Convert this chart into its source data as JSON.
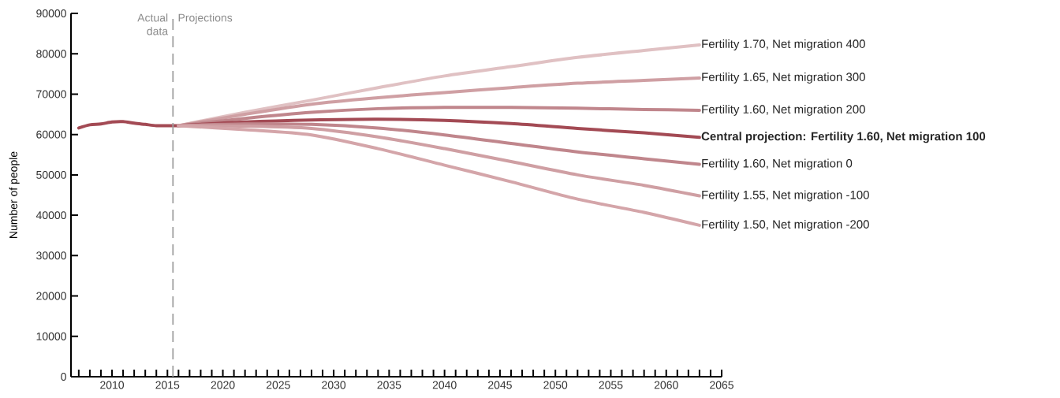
{
  "chart_data": {
    "type": "line",
    "ylabel": "Number of people",
    "xlim": [
      2006.3,
      2065
    ],
    "ylim": [
      0,
      90000
    ],
    "xticks": [
      {
        "value": 2007,
        "label": null
      },
      {
        "value": 2008,
        "label": null
      },
      {
        "value": 2009,
        "label": null
      },
      2010,
      {
        "value": 2011,
        "label": null
      },
      {
        "value": 2012,
        "label": null
      },
      {
        "value": 2013,
        "label": null
      },
      {
        "value": 2014,
        "label": null
      },
      2015,
      {
        "value": 2016,
        "label": null
      },
      {
        "value": 2017,
        "label": null
      },
      {
        "value": 2018,
        "label": null
      },
      {
        "value": 2019,
        "label": null
      },
      2020,
      {
        "value": 2021,
        "label": null
      },
      {
        "value": 2022,
        "label": null
      },
      {
        "value": 2023,
        "label": null
      },
      {
        "value": 2024,
        "label": null
      },
      2025,
      {
        "value": 2026,
        "label": null
      },
      {
        "value": 2027,
        "label": null
      },
      {
        "value": 2028,
        "label": null
      },
      {
        "value": 2029,
        "label": null
      },
      2030,
      {
        "value": 2031,
        "label": null
      },
      {
        "value": 2032,
        "label": null
      },
      {
        "value": 2033,
        "label": null
      },
      {
        "value": 2034,
        "label": null
      },
      2035,
      {
        "value": 2036,
        "label": null
      },
      {
        "value": 2037,
        "label": null
      },
      {
        "value": 2038,
        "label": null
      },
      {
        "value": 2039,
        "label": null
      },
      2040,
      {
        "value": 2041,
        "label": null
      },
      {
        "value": 2042,
        "label": null
      },
      {
        "value": 2043,
        "label": null
      },
      {
        "value": 2044,
        "label": null
      },
      2045,
      {
        "value": 2046,
        "label": null
      },
      {
        "value": 2047,
        "label": null
      },
      {
        "value": 2048,
        "label": null
      },
      {
        "value": 2049,
        "label": null
      },
      2050,
      {
        "value": 2051,
        "label": null
      },
      {
        "value": 2052,
        "label": null
      },
      {
        "value": 2053,
        "label": null
      },
      {
        "value": 2054,
        "label": null
      },
      2055,
      {
        "value": 2056,
        "label": null
      },
      {
        "value": 2057,
        "label": null
      },
      {
        "value": 2058,
        "label": null
      },
      {
        "value": 2059,
        "label": null
      },
      2060,
      {
        "value": 2061,
        "label": null
      },
      {
        "value": 2062,
        "label": null
      },
      {
        "value": 2063,
        "label": null
      },
      {
        "value": 2064,
        "label": null
      },
      2065
    ],
    "yticks": [
      0,
      10000,
      20000,
      30000,
      40000,
      50000,
      60000,
      70000,
      80000,
      90000
    ],
    "grid": false,
    "series": [
      {
        "color": "#a34a54",
        "x": [
          2007,
          2008,
          2009,
          2010,
          2011,
          2012,
          2013,
          2014,
          2015,
          2016
        ],
        "values": [
          61600,
          62400,
          62600,
          63100,
          63200,
          62800,
          62500,
          62200,
          62200,
          62200
        ]
      },
      {
        "name": "Fertility 1.70, Net migration 400",
        "color": "#e0c1c3",
        "x": [
          2016,
          2022,
          2028,
          2034,
          2040,
          2046,
          2052,
          2058,
          2063
        ],
        "values": [
          62200,
          65500,
          68500,
          71600,
          74500,
          76800,
          79100,
          80800,
          82200
        ]
      },
      {
        "name": "Fertility 1.65, Net migration 300",
        "color": "#cf9fa3",
        "x": [
          2016,
          2022,
          2028,
          2034,
          2040,
          2046,
          2052,
          2058,
          2063
        ],
        "values": [
          62200,
          65000,
          67500,
          69100,
          70400,
          71600,
          72700,
          73400,
          74000
        ]
      },
      {
        "name": "Fertility 1.60, Net migration 200",
        "color": "#c0868c",
        "x": [
          2016,
          2022,
          2028,
          2034,
          2040,
          2046,
          2052,
          2058,
          2063
        ],
        "values": [
          62200,
          64000,
          65500,
          66400,
          66700,
          66700,
          66500,
          66200,
          66000
        ]
      },
      {
        "name": "Central projection: Fertility 1.60, Net migration 100",
        "color": "#a34a54",
        "x": [
          2016,
          2022,
          2028,
          2034,
          2040,
          2046,
          2052,
          2058,
          2063
        ],
        "values": [
          62200,
          63100,
          63600,
          63800,
          63500,
          62700,
          61500,
          60400,
          59300
        ]
      },
      {
        "name": "Fertility 1.60, Net migration 0",
        "color": "#c0868c",
        "x": [
          2016,
          2022,
          2028,
          2034,
          2040,
          2046,
          2052,
          2058,
          2063
        ],
        "values": [
          62200,
          62600,
          62500,
          61600,
          59900,
          57800,
          55700,
          54000,
          52600
        ]
      },
      {
        "name": "Fertility 1.55, Net migration -100",
        "color": "#cf9fa3",
        "x": [
          2016,
          2022,
          2028,
          2034,
          2040,
          2046,
          2052,
          2058,
          2063
        ],
        "values": [
          62200,
          62100,
          61500,
          59400,
          56500,
          53300,
          50000,
          47400,
          44800
        ]
      },
      {
        "name": "Fertility 1.50, Net migration -200",
        "color": "#d4a5a9",
        "x": [
          2016,
          2022,
          2028,
          2034,
          2040,
          2046,
          2052,
          2058,
          2063
        ],
        "values": [
          62200,
          61200,
          59900,
          56500,
          52400,
          48300,
          44000,
          40700,
          37500
        ]
      }
    ],
    "ref_lines": [
      {
        "axis": "x",
        "value": 2015.5,
        "color": "#a0a0a0",
        "line_style": "dashed"
      }
    ],
    "annotations": [
      {
        "text": "Actual data",
        "x": 2015.5,
        "y": 90000
      },
      {
        "text": "Projections",
        "x": 2015.5,
        "y": 90000
      }
    ]
  }
}
